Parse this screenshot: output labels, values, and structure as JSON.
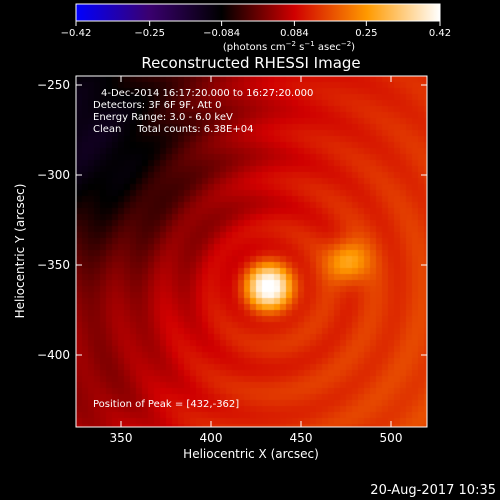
{
  "chart_data": {
    "type": "heatmap",
    "title": "Reconstructed RHESSI Image",
    "xlabel": "Heliocentric X (arcsec)",
    "ylabel": "Heliocentric Y (arcsec)",
    "xlim": [
      325,
      520
    ],
    "ylim": [
      -440,
      -245
    ],
    "x_ticks": [
      350,
      400,
      450,
      500
    ],
    "y_ticks": [
      -250,
      -300,
      -350,
      -400
    ],
    "x_tick_labels": [
      "350",
      "400",
      "450",
      "500"
    ],
    "y_tick_labels": [
      "−250",
      "−300",
      "−350",
      "−400"
    ],
    "colorbar": {
      "range": [
        -0.42,
        0.42
      ],
      "ticks": [
        -0.42,
        -0.25,
        -0.084,
        0.084,
        0.25,
        0.42
      ],
      "tick_labels": [
        "−0.42",
        "−0.25",
        "−0.084",
        "0.084",
        "0.25",
        "0.42"
      ],
      "unit_parts": [
        "(photons cm",
        "−2",
        " s",
        "−1",
        " asec",
        "−2",
        ")"
      ],
      "colormap": [
        "#0000ff",
        "#3a0070",
        "#000000",
        "#d00000",
        "#ff9a00",
        "#ffffff"
      ]
    },
    "annotations": [
      "4-Dec-2014 16:17:20.000 to 16:27:20.000",
      "Detectors: 3F 6F 9F, Att 0",
      "Energy Range: 3.0 - 6.0 keV",
      "Clean     Total counts: 6.38E+04"
    ],
    "peak_label": "Position of Peak = [432,-362]",
    "peak_position": [
      432,
      -362
    ],
    "sources": [
      {
        "x": 432,
        "y": -362,
        "peak": 0.42,
        "sigma": 9
      },
      {
        "x": 476,
        "y": -348,
        "peak": 0.26,
        "sigma": 8
      }
    ]
  },
  "footer": {
    "timestamp": "20-Aug-2017 10:35"
  }
}
